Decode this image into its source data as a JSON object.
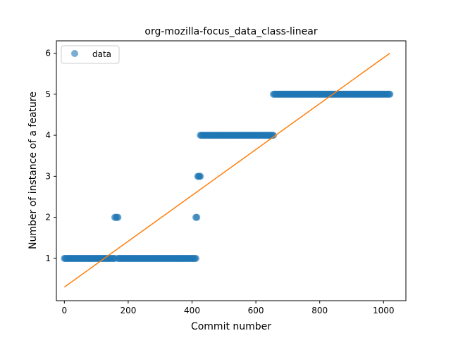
{
  "chart_data": {
    "type": "scatter",
    "title": "org-mozilla-focus_data_class-linear",
    "xlabel": "Commit number",
    "ylabel": "Number of instance of a feature",
    "xlim": [
      -25,
      1070
    ],
    "ylim": [
      -0.03,
      6.3
    ],
    "x_ticks": [
      0,
      200,
      400,
      600,
      800,
      1000
    ],
    "y_ticks": [
      1,
      2,
      3,
      4,
      5,
      6
    ],
    "grid": false,
    "legend": {
      "position": "top-left",
      "entries": [
        "data"
      ]
    },
    "colors": {
      "data": "#1f77b4",
      "fit": "#ff7f0e"
    },
    "data_segments": [
      {
        "x_start": 0,
        "x_end": 158,
        "y": 1
      },
      {
        "x_start": 158,
        "x_end": 168,
        "y": 2
      },
      {
        "x_start": 168,
        "x_end": 412,
        "y": 1
      },
      {
        "x_start": 412,
        "x_end": 415,
        "y": 2
      },
      {
        "x_start": 418,
        "x_end": 426,
        "y": 3
      },
      {
        "x_start": 426,
        "x_end": 655,
        "y": 4
      },
      {
        "x_start": 655,
        "x_end": 1020,
        "y": 5
      }
    ],
    "fit_line": {
      "x": [
        0,
        1020
      ],
      "y": [
        0.3,
        6.0
      ]
    }
  }
}
